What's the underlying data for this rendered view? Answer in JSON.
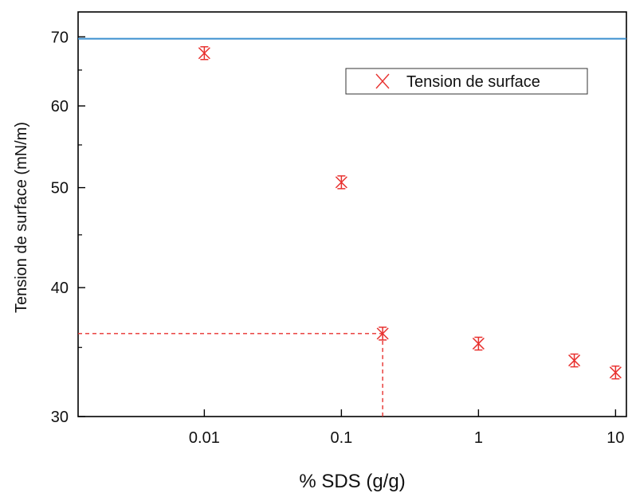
{
  "chart_data": {
    "type": "scatter",
    "xlabel": "% SDS (g/g)",
    "ylabel": "Tension de surface (mN/m)",
    "x_scale": "log",
    "y_scale": "log",
    "xlim": [
      0.0012,
      12
    ],
    "ylim": [
      30,
      74
    ],
    "x_ticks": [
      0.01,
      0.1,
      1,
      10
    ],
    "x_tick_labels": [
      "0.01",
      "0.1",
      "1",
      "10"
    ],
    "y_ticks": [
      30,
      40,
      50,
      60,
      70
    ],
    "y_tick_labels": [
      "30",
      "40",
      "50",
      "60",
      "70"
    ],
    "legend": {
      "position": "top-right",
      "entries": [
        "Tension de surface"
      ]
    },
    "series": [
      {
        "name": "Tension de surface",
        "marker": "x",
        "color": "#e8312f",
        "points": [
          {
            "x": 0.01,
            "y": 67.5
          },
          {
            "x": 0.1,
            "y": 50.6
          },
          {
            "x": 0.2,
            "y": 36.1
          },
          {
            "x": 1,
            "y": 35.3
          },
          {
            "x": 5,
            "y": 34.0
          },
          {
            "x": 10,
            "y": 33.1
          }
        ]
      }
    ],
    "reference_line": {
      "y": 69.7,
      "color": "#3a8fcf"
    },
    "guide_lines": {
      "x": 0.2,
      "y": 36.1,
      "color": "#e8312f",
      "style": "dashed"
    }
  }
}
